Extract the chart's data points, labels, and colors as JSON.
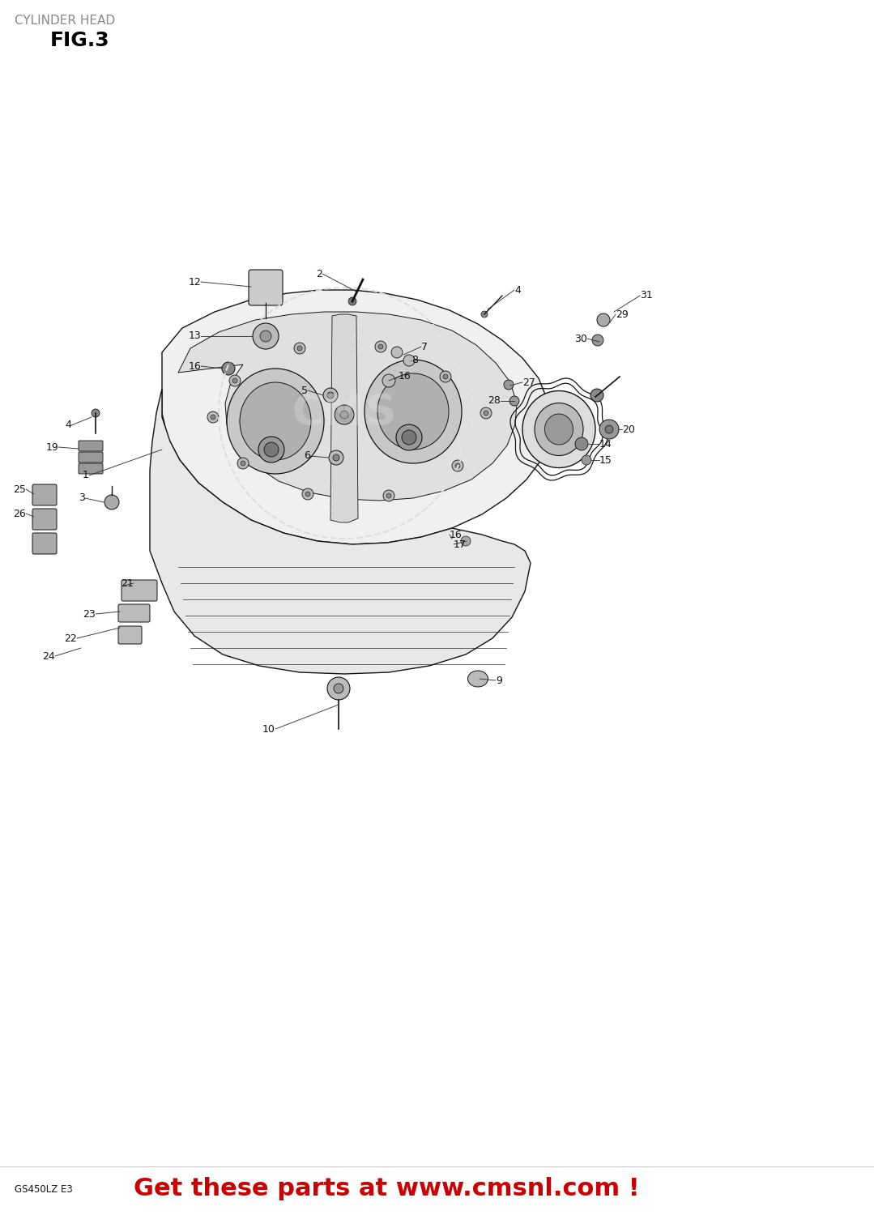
{
  "title_line1": "CYLINDER HEAD",
  "title_line2": "FIG.3",
  "bottom_left_text": "GS450LZ E3",
  "bottom_right_text": "Get these parts at www.cmsnl.com !",
  "background_color": "#ffffff",
  "title_color": "#888888",
  "title_bold_color": "#000000",
  "bottom_text_color": "#cc0000",
  "bottom_left_color": "#111111",
  "fig_width": 10.79,
  "fig_height": 15.0
}
